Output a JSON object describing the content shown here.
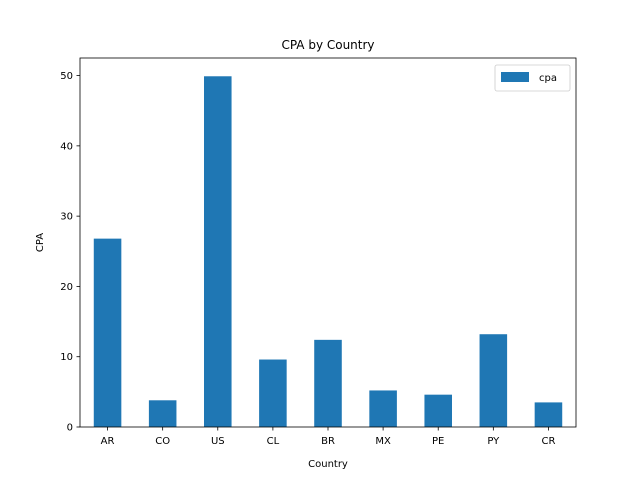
{
  "chart_data": {
    "type": "bar",
    "title": "CPA by Country",
    "xlabel": "Country",
    "ylabel": "CPA",
    "categories": [
      "AR",
      "CO",
      "US",
      "CL",
      "BR",
      "MX",
      "PE",
      "PY",
      "CR"
    ],
    "series": [
      {
        "name": "cpa",
        "color": "#1f77b4",
        "values": [
          26.8,
          3.8,
          49.9,
          9.6,
          12.4,
          5.2,
          4.6,
          13.2,
          3.5
        ]
      }
    ],
    "ylim": [
      0,
      52.5
    ],
    "yticks": [
      0,
      10,
      20,
      30,
      40,
      50
    ],
    "grid": false,
    "legend_position": "top-right"
  }
}
